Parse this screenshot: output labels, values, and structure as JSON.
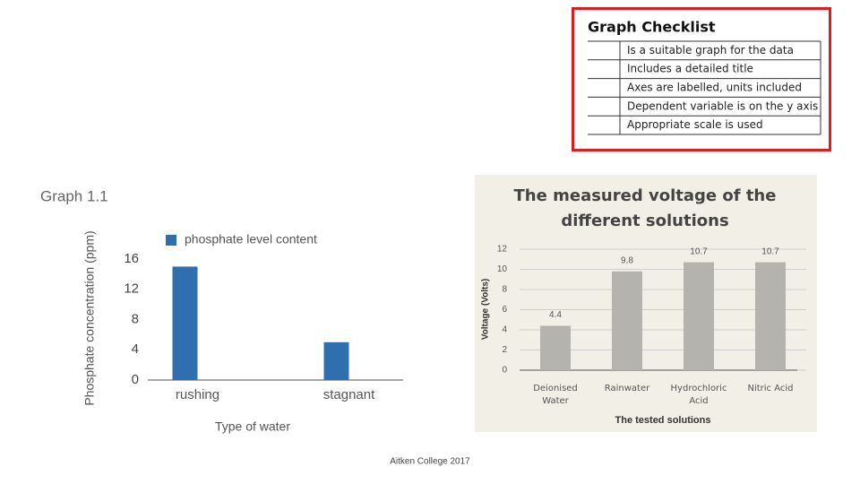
{
  "chart_data": [
    {
      "type": "bar",
      "title": "Graph 1.1",
      "y_label": "Phosphate concentration (ppm)",
      "x_label": "Type of water",
      "categories": [
        "rushing",
        "stagnant"
      ],
      "series": [
        {
          "name": "phosphate level content",
          "color": "#2f6fb0",
          "values": [
            15,
            5
          ]
        }
      ],
      "ylim": [
        0,
        16
      ],
      "yticks": [
        0,
        4,
        8,
        12,
        16
      ],
      "grid": false
    },
    {
      "type": "bar",
      "title": "The measured voltage of the different solutions",
      "y_label": "Voltage (Volts)",
      "x_label": "The tested solutions",
      "categories": [
        "Deionised Water",
        "Rainwater",
        "Hydrochloric Acid",
        "Nitric Acid"
      ],
      "values": [
        4.4,
        9.8,
        10.7,
        10.7
      ],
      "color": "#b5b3ae",
      "ylim": [
        0,
        12
      ],
      "yticks": [
        0,
        2,
        4,
        6,
        8,
        10,
        12
      ],
      "grid": true
    }
  ],
  "checklist": {
    "title": "Graph Checklist",
    "items": [
      "Is a suitable graph for the data",
      "Includes a detailed title",
      "Axes are labelled, units included",
      "Dependent variable is on the y axis",
      "Appropriate scale is used"
    ]
  },
  "footer": "Aitken College 2017"
}
